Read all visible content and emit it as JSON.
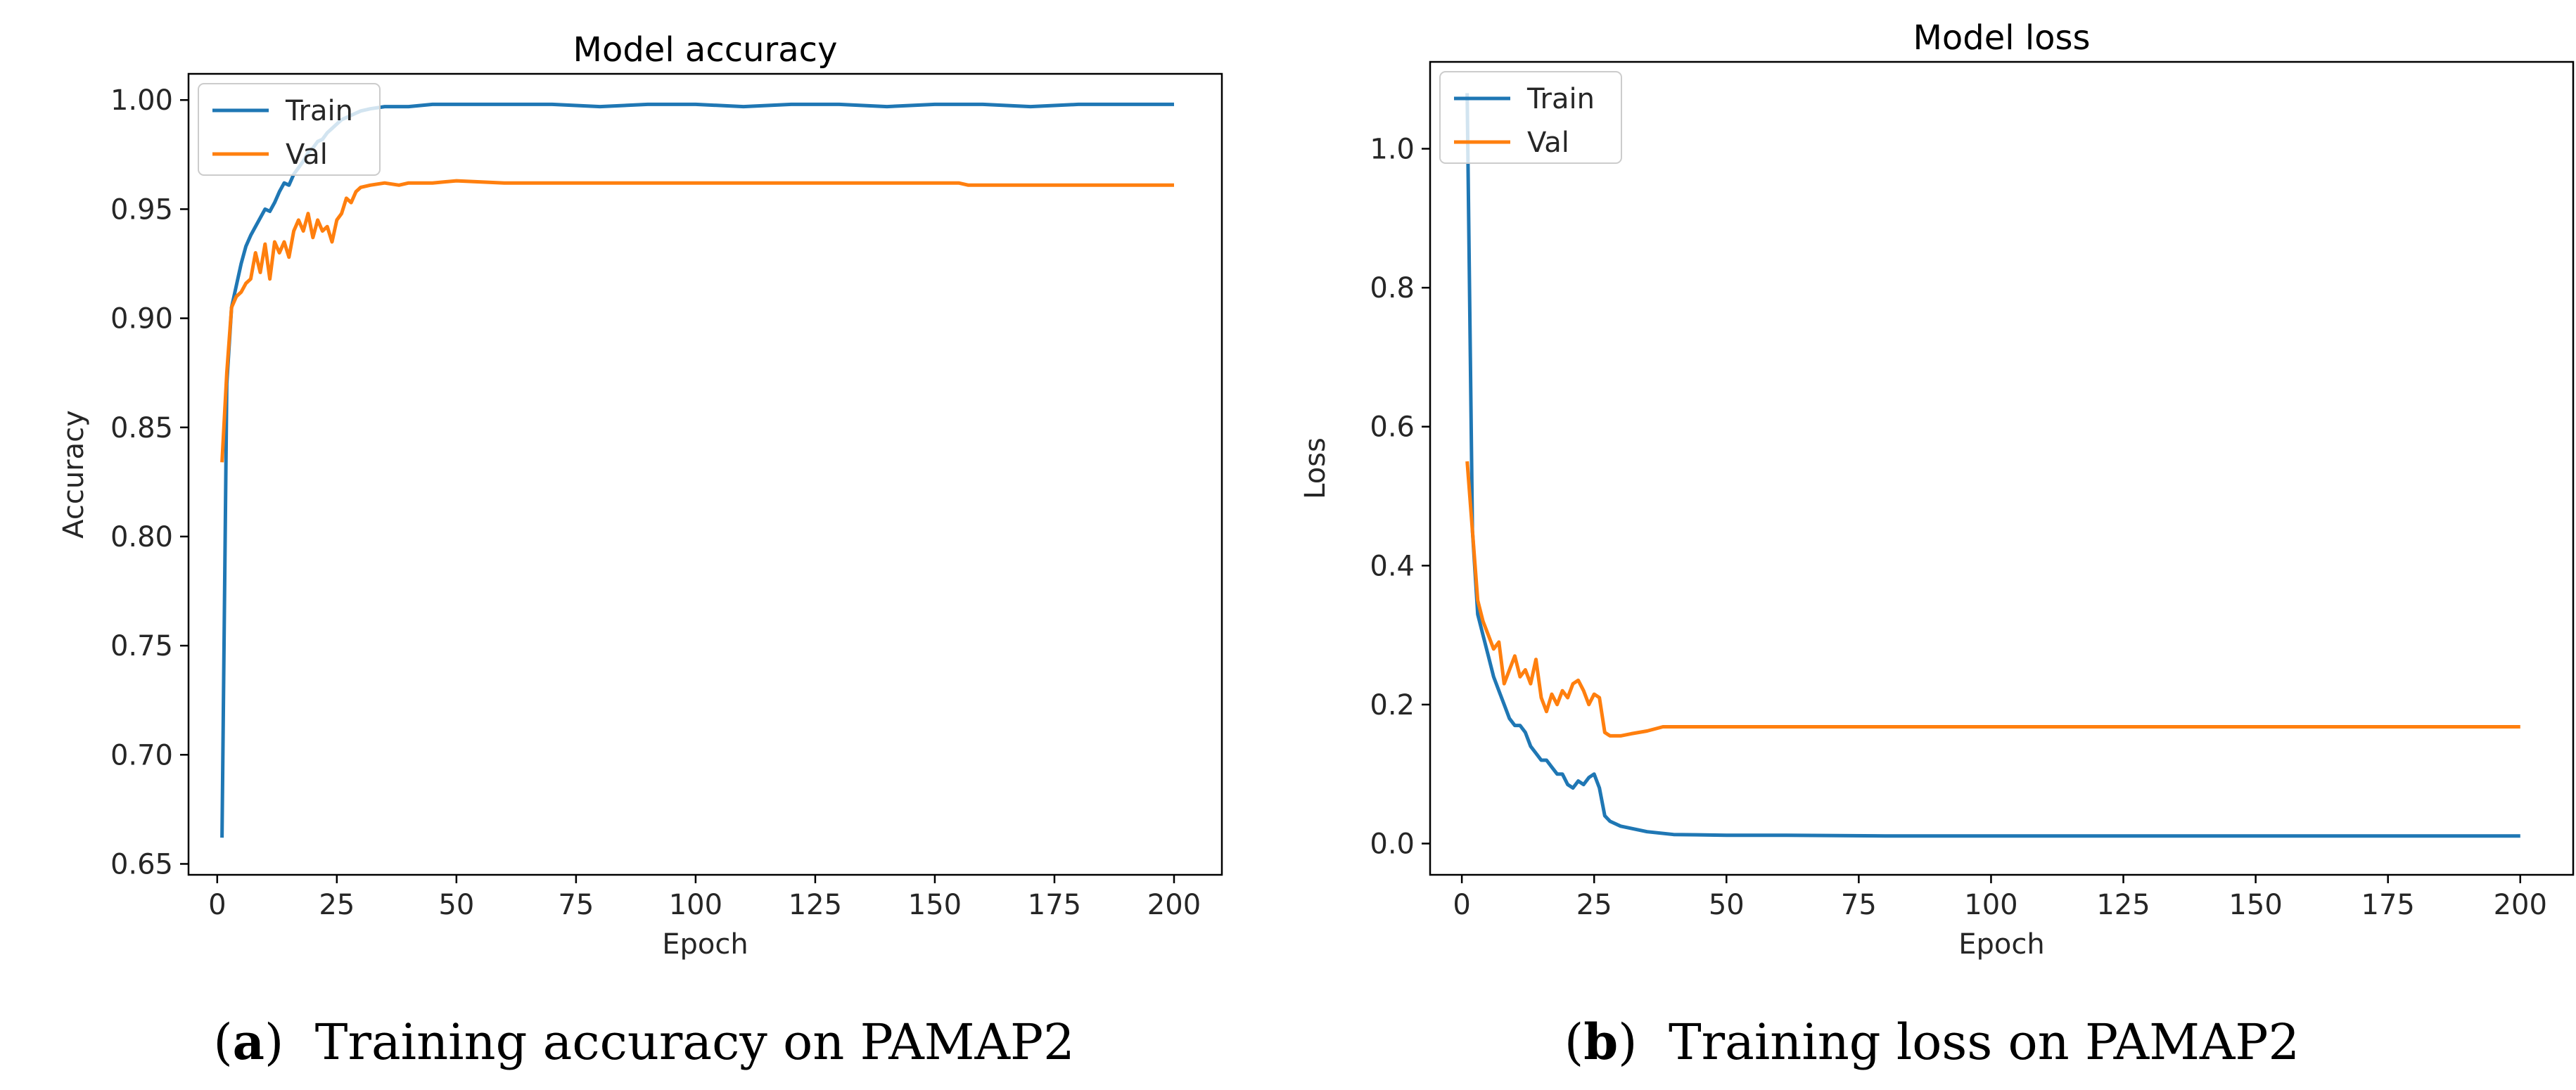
{
  "captions": [
    {
      "letter": "a",
      "text": "Training accuracy on PAMAP2"
    },
    {
      "letter": "b",
      "text": "Training loss on PAMAP2"
    }
  ],
  "colors": {
    "train": "#1f77b4",
    "val": "#ff7f0e"
  },
  "chart_data": [
    {
      "type": "line",
      "title": "Model accuracy",
      "xlabel": "Epoch",
      "ylabel": "Accuracy",
      "xlim": [
        -6,
        210
      ],
      "ylim": [
        0.645,
        1.012
      ],
      "xticks": [
        0,
        25,
        50,
        75,
        100,
        125,
        150,
        175,
        200
      ],
      "xtick_labels": [
        "0",
        "25",
        "50",
        "75",
        "100",
        "125",
        "150",
        "175",
        "200"
      ],
      "yticks": [
        0.65,
        0.7,
        0.75,
        0.8,
        0.85,
        0.9,
        0.95,
        1.0
      ],
      "ytick_labels": [
        "0.65",
        "0.70",
        "0.75",
        "0.80",
        "0.85",
        "0.90",
        "0.95",
        "1.00"
      ],
      "legend": "top-left",
      "series": [
        {
          "name": "Train",
          "points": [
            [
              1,
              0.662
            ],
            [
              2,
              0.87
            ],
            [
              3,
              0.905
            ],
            [
              4,
              0.915
            ],
            [
              5,
              0.925
            ],
            [
              6,
              0.933
            ],
            [
              7,
              0.938
            ],
            [
              8,
              0.942
            ],
            [
              9,
              0.946
            ],
            [
              10,
              0.95
            ],
            [
              11,
              0.949
            ],
            [
              12,
              0.953
            ],
            [
              13,
              0.958
            ],
            [
              14,
              0.962
            ],
            [
              15,
              0.961
            ],
            [
              16,
              0.966
            ],
            [
              17,
              0.969
            ],
            [
              18,
              0.972
            ],
            [
              19,
              0.976
            ],
            [
              20,
              0.978
            ],
            [
              21,
              0.981
            ],
            [
              22,
              0.982
            ],
            [
              23,
              0.985
            ],
            [
              24,
              0.987
            ],
            [
              25,
              0.989
            ],
            [
              26,
              0.991
            ],
            [
              27,
              0.992
            ],
            [
              28,
              0.993
            ],
            [
              30,
              0.995
            ],
            [
              32,
              0.996
            ],
            [
              35,
              0.997
            ],
            [
              40,
              0.997
            ],
            [
              45,
              0.998
            ],
            [
              50,
              0.998
            ],
            [
              60,
              0.998
            ],
            [
              70,
              0.998
            ],
            [
              80,
              0.997
            ],
            [
              90,
              0.998
            ],
            [
              100,
              0.998
            ],
            [
              110,
              0.997
            ],
            [
              120,
              0.998
            ],
            [
              130,
              0.998
            ],
            [
              140,
              0.997
            ],
            [
              150,
              0.998
            ],
            [
              160,
              0.998
            ],
            [
              170,
              0.997
            ],
            [
              180,
              0.998
            ],
            [
              190,
              0.998
            ],
            [
              200,
              0.998
            ]
          ]
        },
        {
          "name": "Val",
          "points": [
            [
              1,
              0.834
            ],
            [
              2,
              0.875
            ],
            [
              3,
              0.905
            ],
            [
              4,
              0.91
            ],
            [
              5,
              0.912
            ],
            [
              6,
              0.916
            ],
            [
              7,
              0.918
            ],
            [
              8,
              0.93
            ],
            [
              9,
              0.921
            ],
            [
              10,
              0.934
            ],
            [
              11,
              0.918
            ],
            [
              12,
              0.935
            ],
            [
              13,
              0.93
            ],
            [
              14,
              0.935
            ],
            [
              15,
              0.928
            ],
            [
              16,
              0.94
            ],
            [
              17,
              0.945
            ],
            [
              18,
              0.94
            ],
            [
              19,
              0.948
            ],
            [
              20,
              0.937
            ],
            [
              21,
              0.945
            ],
            [
              22,
              0.94
            ],
            [
              23,
              0.942
            ],
            [
              24,
              0.935
            ],
            [
              25,
              0.945
            ],
            [
              26,
              0.948
            ],
            [
              27,
              0.955
            ],
            [
              28,
              0.953
            ],
            [
              29,
              0.958
            ],
            [
              30,
              0.96
            ],
            [
              32,
              0.961
            ],
            [
              35,
              0.962
            ],
            [
              38,
              0.961
            ],
            [
              40,
              0.962
            ],
            [
              45,
              0.962
            ],
            [
              50,
              0.963
            ],
            [
              60,
              0.962
            ],
            [
              80,
              0.962
            ],
            [
              100,
              0.962
            ],
            [
              120,
              0.962
            ],
            [
              155,
              0.962
            ],
            [
              157,
              0.961
            ],
            [
              180,
              0.961
            ],
            [
              200,
              0.961
            ]
          ]
        }
      ]
    },
    {
      "type": "line",
      "title": "Model loss",
      "xlabel": "Epoch",
      "ylabel": "Loss",
      "xlim": [
        -6,
        210
      ],
      "ylim": [
        -0.045,
        1.125
      ],
      "xticks": [
        0,
        25,
        50,
        75,
        100,
        125,
        150,
        175,
        200
      ],
      "xtick_labels": [
        "0",
        "25",
        "50",
        "75",
        "100",
        "125",
        "150",
        "175",
        "200"
      ],
      "yticks": [
        0.0,
        0.2,
        0.4,
        0.6,
        0.8,
        1.0
      ],
      "ytick_labels": [
        "0.0",
        "0.2",
        "0.4",
        "0.6",
        "0.8",
        "1.0"
      ],
      "legend": "top-left",
      "series": [
        {
          "name": "Train",
          "points": [
            [
              1,
              1.08
            ],
            [
              2,
              0.45
            ],
            [
              3,
              0.33
            ],
            [
              4,
              0.3
            ],
            [
              5,
              0.27
            ],
            [
              6,
              0.24
            ],
            [
              7,
              0.22
            ],
            [
              8,
              0.2
            ],
            [
              9,
              0.18
            ],
            [
              10,
              0.17
            ],
            [
              11,
              0.17
            ],
            [
              12,
              0.16
            ],
            [
              13,
              0.14
            ],
            [
              14,
              0.13
            ],
            [
              15,
              0.12
            ],
            [
              16,
              0.12
            ],
            [
              17,
              0.11
            ],
            [
              18,
              0.1
            ],
            [
              19,
              0.1
            ],
            [
              20,
              0.085
            ],
            [
              21,
              0.08
            ],
            [
              22,
              0.09
            ],
            [
              23,
              0.085
            ],
            [
              24,
              0.095
            ],
            [
              25,
              0.1
            ],
            [
              26,
              0.08
            ],
            [
              27,
              0.04
            ],
            [
              28,
              0.032
            ],
            [
              30,
              0.025
            ],
            [
              35,
              0.017
            ],
            [
              40,
              0.013
            ],
            [
              50,
              0.012
            ],
            [
              60,
              0.012
            ],
            [
              80,
              0.011
            ],
            [
              100,
              0.011
            ],
            [
              120,
              0.011
            ],
            [
              140,
              0.011
            ],
            [
              160,
              0.011
            ],
            [
              180,
              0.011
            ],
            [
              200,
              0.011
            ]
          ]
        },
        {
          "name": "Val",
          "points": [
            [
              1,
              0.55
            ],
            [
              2,
              0.45
            ],
            [
              3,
              0.35
            ],
            [
              4,
              0.32
            ],
            [
              5,
              0.3
            ],
            [
              6,
              0.28
            ],
            [
              7,
              0.29
            ],
            [
              8,
              0.23
            ],
            [
              9,
              0.25
            ],
            [
              10,
              0.27
            ],
            [
              11,
              0.24
            ],
            [
              12,
              0.25
            ],
            [
              13,
              0.23
            ],
            [
              14,
              0.265
            ],
            [
              15,
              0.21
            ],
            [
              16,
              0.19
            ],
            [
              17,
              0.215
            ],
            [
              18,
              0.2
            ],
            [
              19,
              0.22
            ],
            [
              20,
              0.21
            ],
            [
              21,
              0.23
            ],
            [
              22,
              0.235
            ],
            [
              23,
              0.22
            ],
            [
              24,
              0.2
            ],
            [
              25,
              0.215
            ],
            [
              26,
              0.21
            ],
            [
              27,
              0.16
            ],
            [
              28,
              0.155
            ],
            [
              30,
              0.155
            ],
            [
              32,
              0.158
            ],
            [
              35,
              0.162
            ],
            [
              38,
              0.168
            ],
            [
              40,
              0.168
            ],
            [
              50,
              0.168
            ],
            [
              75,
              0.168
            ],
            [
              100,
              0.168
            ],
            [
              125,
              0.168
            ],
            [
              150,
              0.168
            ],
            [
              175,
              0.168
            ],
            [
              200,
              0.168
            ]
          ]
        }
      ]
    }
  ]
}
